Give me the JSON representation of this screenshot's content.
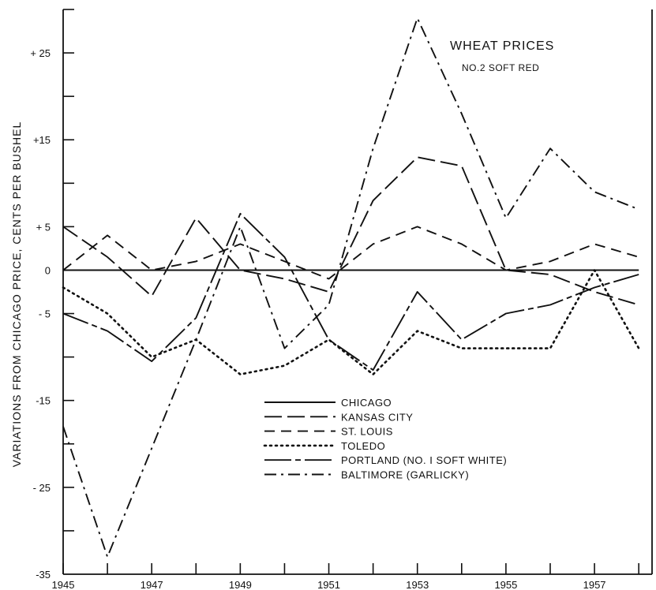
{
  "chart_data": {
    "type": "line",
    "title": "WHEAT PRICES",
    "subtitle": "NO.2 SOFT RED",
    "ylabel": "VARIATIONS FROM CHICAGO PRICE, CENTS PER BUSHEL",
    "xlabel": "",
    "xlim": [
      1945,
      1958.3
    ],
    "ylim": [
      -35,
      30
    ],
    "x_tick_labels": [
      "1945",
      "1947",
      "1949",
      "1951",
      "1953",
      "1955",
      "1957"
    ],
    "y_tick_labels": [
      {
        "value": 25,
        "label": "+ 25"
      },
      {
        "value": 15,
        "label": "+15"
      },
      {
        "value": 5,
        "label": "+ 5"
      },
      {
        "value": 0,
        "label": "0"
      },
      {
        "value": -5,
        "label": "- 5"
      },
      {
        "value": -15,
        "label": "-15"
      },
      {
        "value": -25,
        "label": "- 25"
      },
      {
        "value": -35,
        "label": "-35"
      }
    ],
    "legend_position": "center",
    "series": [
      {
        "name": "CHICAGO",
        "dash": "solid",
        "x": [
          1945,
          1958
        ],
        "y": [
          0,
          0
        ]
      },
      {
        "name": "KANSAS CITY",
        "dash": "longdash",
        "x": [
          1945,
          1946,
          1947,
          1948,
          1949,
          1950,
          1951,
          1952,
          1953,
          1954,
          1955,
          1956,
          1957,
          1958
        ],
        "y": [
          5,
          1.5,
          -3,
          6,
          0,
          -1,
          -2.5,
          8,
          13,
          12,
          0,
          -0.5,
          -2.5,
          -4
        ]
      },
      {
        "name": "ST. LOUIS",
        "dash": "dashed",
        "x": [
          1945,
          1946,
          1947,
          1948,
          1949,
          1950,
          1951,
          1952,
          1953,
          1954,
          1955,
          1956,
          1957,
          1958
        ],
        "y": [
          0,
          4,
          0,
          1,
          3,
          1,
          -1,
          3,
          5,
          3,
          0,
          1,
          3,
          1.5
        ]
      },
      {
        "name": "TOLEDO",
        "dash": "dotted",
        "x": [
          1945,
          1946,
          1947,
          1948,
          1949,
          1950,
          1951,
          1952,
          1953,
          1954,
          1955,
          1956,
          1957,
          1958
        ],
        "y": [
          -2,
          -5,
          -10,
          -8,
          -12,
          -11,
          -8,
          -12,
          -7,
          -9,
          -9,
          -9,
          0,
          -9
        ]
      },
      {
        "name": "PORTLAND (NO. I SOFT WHITE)",
        "dash": "longshort",
        "x": [
          1945,
          1946,
          1947,
          1948,
          1949,
          1950,
          1951,
          1952,
          1953,
          1954,
          1955,
          1956,
          1957,
          1958
        ],
        "y": [
          -5,
          -7,
          -10.5,
          -5.5,
          6.5,
          1.5,
          -8,
          -11.5,
          -2.5,
          -8,
          -5,
          -4,
          -2,
          -0.5
        ]
      },
      {
        "name": "BALTIMORE (GARLICKY)",
        "dash": "dashdot",
        "x": [
          1945,
          1946,
          1947,
          1948,
          1949,
          1950,
          1951,
          1952,
          1953,
          1954,
          1955,
          1956,
          1957,
          1958
        ],
        "y": [
          -18,
          -33,
          -20.5,
          -8,
          5,
          -9,
          -4,
          14,
          29,
          18,
          6,
          14,
          9,
          7
        ]
      }
    ],
    "colors": {
      "line": "#111111",
      "background": "#ffffff"
    }
  }
}
